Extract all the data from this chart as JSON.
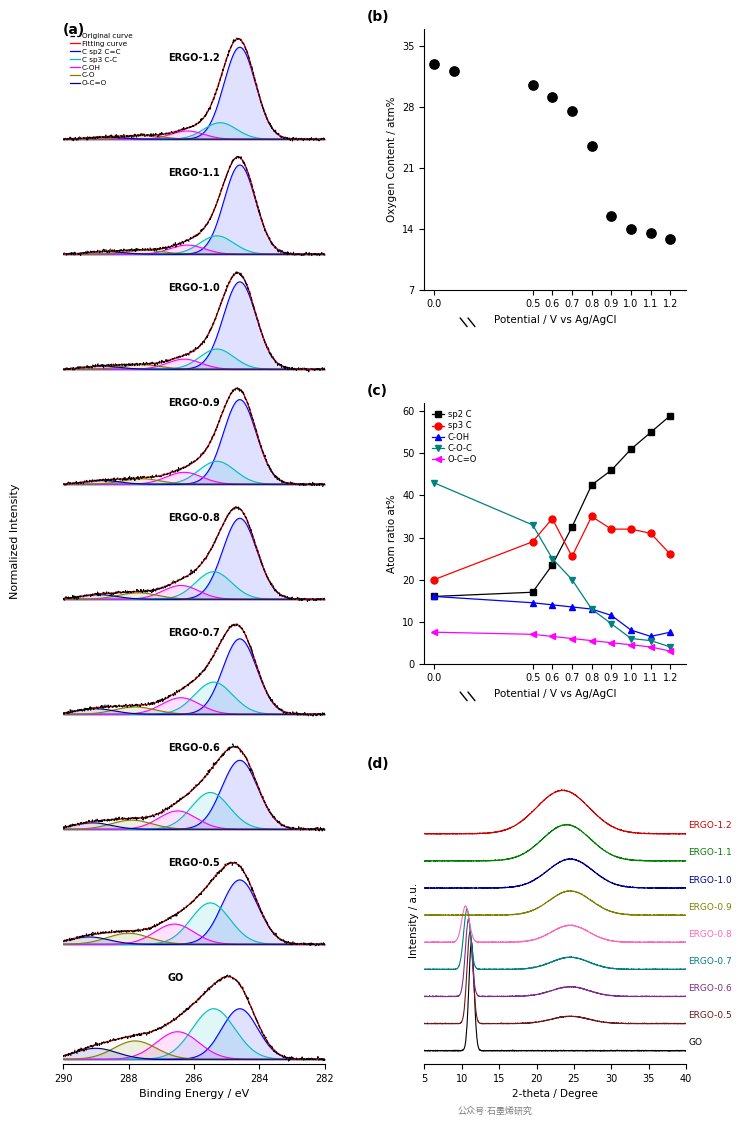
{
  "samples": [
    "GO",
    "ERGO-0.5",
    "ERGO-0.6",
    "ERGO-0.7",
    "ERGO-0.8",
    "ERGO-0.9",
    "ERGO-1.0",
    "ERGO-1.1",
    "ERGO-1.2"
  ],
  "panel_b": {
    "potentials": [
      0.0,
      0.1,
      0.5,
      0.6,
      0.7,
      0.8,
      0.9,
      1.0,
      1.1,
      1.2
    ],
    "oxygen_content": [
      33.0,
      32.2,
      30.5,
      29.2,
      27.5,
      23.5,
      15.5,
      14.0,
      13.5,
      12.8
    ],
    "ylabel": "Oxygen Content / atm%",
    "xlabel": "Potential / V vs Ag/AgCl",
    "yticks": [
      7,
      14,
      21,
      28,
      35
    ]
  },
  "panel_c": {
    "potentials": [
      0.0,
      0.5,
      0.6,
      0.7,
      0.8,
      0.9,
      1.0,
      1.1,
      1.2
    ],
    "sp2C": [
      16.0,
      17.0,
      23.5,
      32.5,
      42.5,
      46.0,
      51.0,
      55.0,
      59.0
    ],
    "sp3C": [
      20.0,
      29.0,
      34.5,
      25.5,
      35.0,
      32.0,
      32.0,
      31.0,
      26.0
    ],
    "COH": [
      16.0,
      14.5,
      14.0,
      13.5,
      13.0,
      11.5,
      8.0,
      6.5,
      7.5
    ],
    "COC": [
      43.0,
      33.0,
      25.0,
      20.0,
      13.0,
      9.5,
      6.0,
      5.5,
      4.0
    ],
    "OCO": [
      7.5,
      7.0,
      6.5,
      6.0,
      5.5,
      5.0,
      4.5,
      4.0,
      3.0
    ],
    "ylabel": "Atom ratio at%",
    "xlabel": "Potential / V vs Ag/AgCl",
    "yticks": [
      0,
      10,
      20,
      30,
      40,
      50,
      60
    ]
  },
  "legend_a_labels": [
    "Original curve",
    "Fitting curve",
    "C sp2 C=C",
    "C sp3 C-C",
    "C-OH",
    "C-O",
    "O-C=O"
  ],
  "legend_a_colors": [
    "#000000",
    "#FF0000",
    "#0000FF",
    "#00BFBF",
    "#FF00FF",
    "#808000",
    "#000080"
  ],
  "legend_a_styles": [
    "dashed",
    "solid",
    "solid",
    "solid",
    "solid",
    "solid",
    "solid"
  ],
  "xps_colors": [
    "#0000FF",
    "#00BFBF",
    "#FF00FF",
    "#808000",
    "#000080"
  ],
  "xrd_colors": [
    "#000000",
    "#6B1A1A",
    "#7B2D8B",
    "#008080",
    "#FF69B4",
    "#808000",
    "#00008B",
    "#008000",
    "#CC0000"
  ],
  "xrd_label_colors": [
    "#000000",
    "#6B1A1A",
    "#7B2D8B",
    "#008080",
    "#FF69B4",
    "#808000",
    "#00008B",
    "#008000",
    "#CC0000"
  ],
  "xrd_labels": [
    "GO",
    "ERGO-0.5",
    "ERGO-0.6",
    "ERGO-0.7",
    "ERGO-0.8",
    "ERGO-0.9",
    "ERGO-1.0",
    "ERGO-1.1",
    "ERGO-1.2"
  ]
}
